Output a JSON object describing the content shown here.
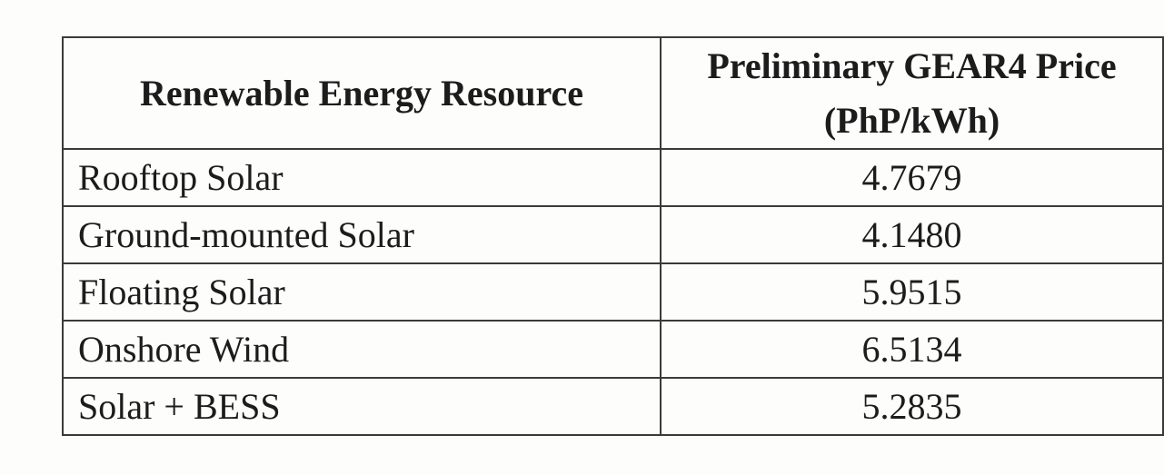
{
  "table": {
    "header": [
      "Renewable Energy Resource",
      "Preliminary GEAR4 Price (PhP/kWh)"
    ],
    "rows": [
      [
        "Rooftop Solar",
        "4.7679"
      ],
      [
        "Ground-mounted Solar",
        "4.1480"
      ],
      [
        "Floating Solar",
        "5.9515"
      ],
      [
        "Onshore Wind",
        "6.5134"
      ],
      [
        "Solar + BESS",
        "5.2835"
      ]
    ]
  }
}
